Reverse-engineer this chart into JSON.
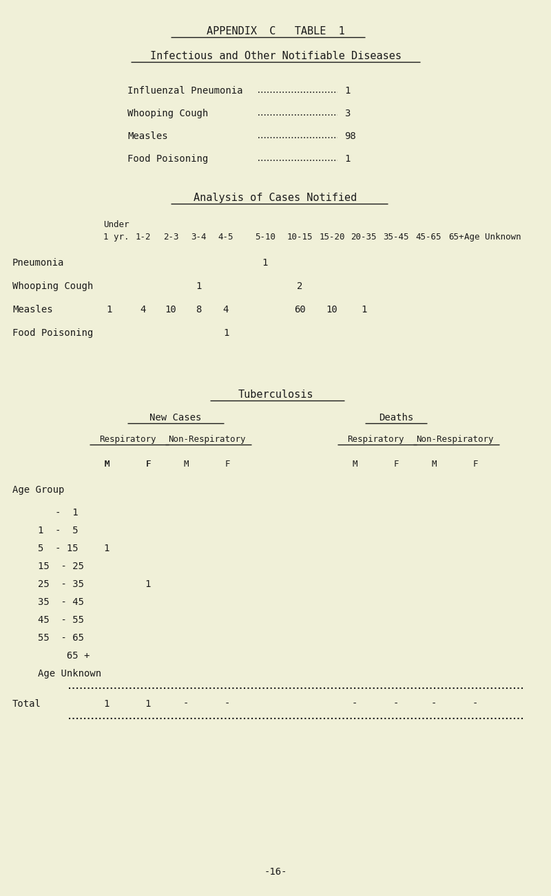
{
  "bg_color": "#f0f0d8",
  "text_color": "#1a1a1a",
  "title1": "APPENDIX  C   TABLE  1",
  "title2": "Infectious and Other Notifiable Diseases",
  "diseases": [
    {
      "name": "Influenzal Pneumonia",
      "value": "1"
    },
    {
      "name": "Whooping Cough",
      "value": "3"
    },
    {
      "name": "Measles",
      "value": "98"
    },
    {
      "name": "Food Poisoning",
      "value": "1"
    }
  ],
  "section2_title": "Analysis of Cases Notified",
  "section3_title": "Tuberculosis",
  "tb_new_cases": "New Cases",
  "tb_deaths": "Deaths",
  "tb_respiratory": "Respiratory",
  "tb_non_respiratory": "Non-Respiratory",
  "age_group_label": "Age Group",
  "age_groups": [
    "   -  1",
    "1  -  5",
    "5  - 15",
    "15  - 25",
    "25  - 35",
    "35  - 45",
    "45  - 55",
    "55  - 65",
    "     65 +",
    "Age Unknown"
  ],
  "total_label": "Total",
  "total_row": [
    "1",
    "1",
    "-",
    "-",
    "",
    "-",
    "-",
    "-",
    "-"
  ],
  "page_number": "-16-",
  "fig_width": 8.0,
  "fig_height": 13.02,
  "dpi": 100
}
